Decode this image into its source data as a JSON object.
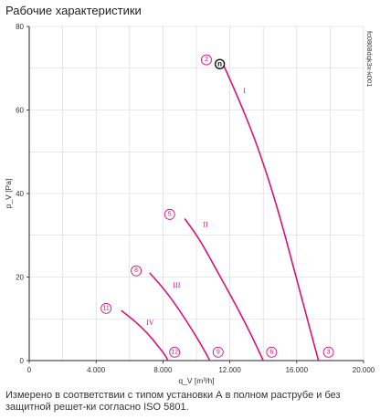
{
  "page_title": "Рабочие характеристики",
  "caption": "Измерено в соответствии с типом установки А в полном раструбе и без защитной решет-ки согласно ISO 5801.",
  "chart_code": "fc0808dqk3x-k001",
  "colors": {
    "curve": "#d6127e",
    "grid": "#d4d4d4",
    "axis": "#222222"
  },
  "chart_data": {
    "type": "line",
    "xlabel": "q_V [m³/h]",
    "ylabel": "p_V [Pa]",
    "xlim": [
      0,
      20000
    ],
    "ylim": [
      0,
      80
    ],
    "x_tick_labels": [
      {
        "value": 0,
        "label": "0"
      },
      {
        "value": 4000,
        "label": "4.000"
      },
      {
        "value": 8000,
        "label": "8.000"
      },
      {
        "value": 12000,
        "label": "12.000"
      },
      {
        "value": 16000,
        "label": "16.000"
      },
      {
        "value": 20000,
        "label": "20.000"
      }
    ],
    "y_tick_labels": [
      {
        "value": 0,
        "label": "0"
      },
      {
        "value": 20,
        "label": "20"
      },
      {
        "value": 40,
        "label": "40"
      },
      {
        "value": 60,
        "label": "60"
      },
      {
        "value": 80,
        "label": "80"
      }
    ],
    "grid": true,
    "series": [
      {
        "name": "I",
        "x": [
          11600,
          12600,
          13700,
          14900,
          16100,
          17300
        ],
        "y": [
          71,
          62,
          51,
          36,
          18,
          0
        ]
      },
      {
        "name": "II",
        "x": [
          9300,
          10200,
          11300,
          12400,
          13300,
          14000
        ],
        "y": [
          34,
          29,
          21,
          13,
          6,
          0
        ]
      },
      {
        "name": "III",
        "x": [
          7200,
          8100,
          9000,
          9800,
          10400,
          10800
        ],
        "y": [
          21,
          17,
          12,
          7,
          3,
          0
        ]
      },
      {
        "name": "IV",
        "x": [
          5500,
          6300,
          7100,
          7700,
          8100,
          8300
        ],
        "y": [
          12,
          9.5,
          6.5,
          3.5,
          1.5,
          0
        ]
      }
    ],
    "roman_labels": [
      {
        "text": "I",
        "x": 12800,
        "y": 64
      },
      {
        "text": "II",
        "x": 10400,
        "y": 32
      },
      {
        "text": "III",
        "x": 8600,
        "y": 17.5
      },
      {
        "text": "IV",
        "x": 7000,
        "y": 8.5
      }
    ],
    "point_markers": [
      {
        "label": "2",
        "x": 10600,
        "y": 72
      },
      {
        "label": "5",
        "x": 8400,
        "y": 35
      },
      {
        "label": "8",
        "x": 6400,
        "y": 21.5
      },
      {
        "label": "11",
        "x": 4600,
        "y": 12.5
      },
      {
        "label": "12",
        "x": 8700,
        "y": 2
      },
      {
        "label": "9",
        "x": 11300,
        "y": 2
      },
      {
        "label": "6",
        "x": 14500,
        "y": 2
      },
      {
        "label": "3",
        "x": 17900,
        "y": 2
      }
    ],
    "operating_point": {
      "label": "n",
      "x": 11400,
      "y": 71
    }
  }
}
